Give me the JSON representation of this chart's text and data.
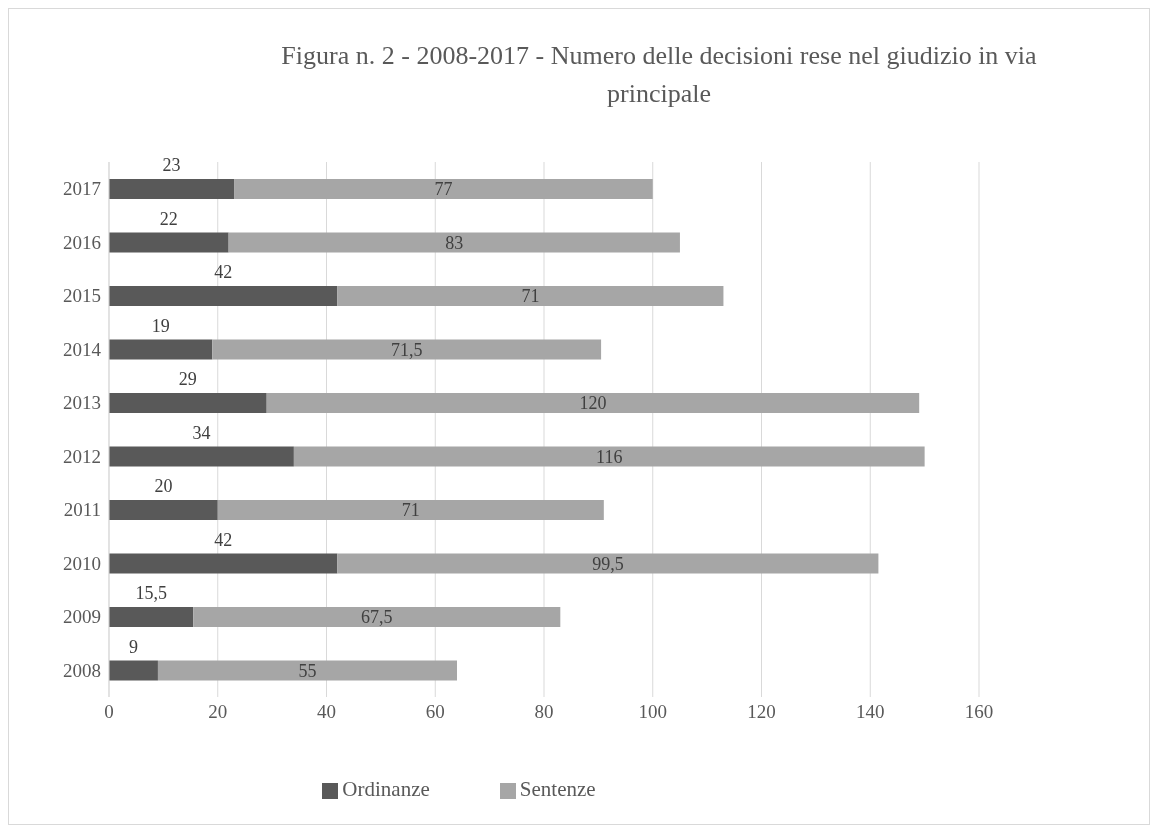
{
  "chart_data": {
    "type": "bar",
    "title": "Figura n. 2 - 2008-2017 - Numero  delle decisioni rese nel giudizio in via principale",
    "orientation": "horizontal",
    "stacked": true,
    "categories": [
      "2017",
      "2016",
      "2015",
      "2014",
      "2013",
      "2012",
      "2011",
      "2010",
      "2009",
      "2008"
    ],
    "series": [
      {
        "name": "Ordinanze",
        "color": "#595959",
        "values": [
          23,
          22,
          42,
          19,
          29,
          34,
          20,
          42,
          15.5,
          9
        ],
        "value_labels": [
          "23",
          "22",
          "42",
          "19",
          "29",
          "34",
          "20",
          "42",
          "15,5",
          "9"
        ]
      },
      {
        "name": "Sentenze",
        "color": "#a6a6a6",
        "values": [
          77,
          83,
          71,
          71.5,
          120,
          116,
          71,
          99.5,
          67.5,
          55
        ],
        "value_labels": [
          "77",
          "83",
          "71",
          "71,5",
          "120",
          "116",
          "71",
          "99,5",
          "67,5",
          "55"
        ]
      }
    ],
    "xlim": [
      0,
      160
    ],
    "xticks": [
      0,
      20,
      40,
      60,
      80,
      100,
      120,
      140,
      160
    ],
    "grid": "x",
    "legend": "bottom"
  }
}
